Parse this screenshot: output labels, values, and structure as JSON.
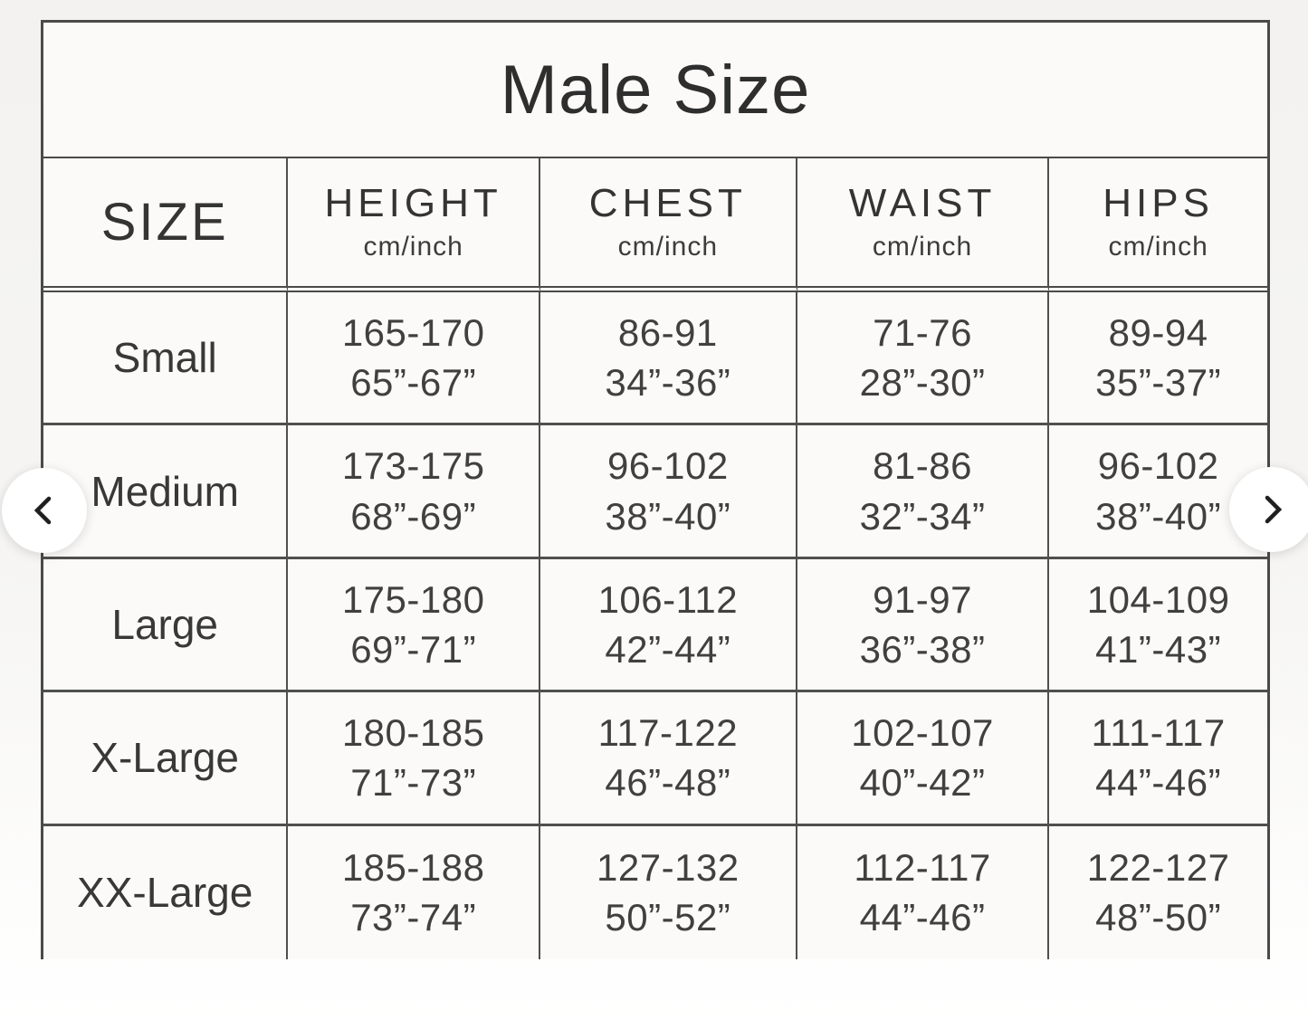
{
  "size_chart": {
    "title": "Male Size",
    "columns": [
      {
        "label": "SIZE",
        "sub": ""
      },
      {
        "label": "HEIGHT",
        "sub": "cm/inch"
      },
      {
        "label": "CHEST",
        "sub": "cm/inch"
      },
      {
        "label": "WAIST",
        "sub": "cm/inch"
      },
      {
        "label": "HIPS",
        "sub": "cm/inch"
      }
    ],
    "rows": [
      {
        "size": "Small",
        "height": {
          "cm": "165-170",
          "inch": "65”-67”"
        },
        "chest": {
          "cm": "86-91",
          "inch": "34”-36”"
        },
        "waist": {
          "cm": "71-76",
          "inch": "28”-30”"
        },
        "hips": {
          "cm": "89-94",
          "inch": "35”-37”"
        }
      },
      {
        "size": "Medium",
        "height": {
          "cm": "173-175",
          "inch": "68”-69”"
        },
        "chest": {
          "cm": "96-102",
          "inch": "38”-40”"
        },
        "waist": {
          "cm": "81-86",
          "inch": "32”-34”"
        },
        "hips": {
          "cm": "96-102",
          "inch": "38”-40”"
        }
      },
      {
        "size": "Large",
        "height": {
          "cm": "175-180",
          "inch": "69”-71”"
        },
        "chest": {
          "cm": "106-112",
          "inch": "42”-44”"
        },
        "waist": {
          "cm": "91-97",
          "inch": "36”-38”"
        },
        "hips": {
          "cm": "104-109",
          "inch": "41”-43”"
        }
      },
      {
        "size": "X-Large",
        "height": {
          "cm": "180-185",
          "inch": "71”-73”"
        },
        "chest": {
          "cm": "117-122",
          "inch": "46”-48”"
        },
        "waist": {
          "cm": "102-107",
          "inch": "40”-42”"
        },
        "hips": {
          "cm": "111-117",
          "inch": "44”-46”"
        }
      },
      {
        "size": "XX-Large",
        "height": {
          "cm": "185-188",
          "inch": "73”-74”"
        },
        "chest": {
          "cm": "127-132",
          "inch": "50”-52”"
        },
        "waist": {
          "cm": "112-117",
          "inch": "44”-46”"
        },
        "hips": {
          "cm": "122-127",
          "inch": "48”-50”"
        }
      }
    ]
  },
  "carousel": {
    "prev_icon": "chevron-left",
    "next_icon": "chevron-right"
  },
  "colors": {
    "table_border": "#4a4a4a",
    "text": "#3d3d3d",
    "page_background": "#f5f4f2",
    "nav_button_background": "#ffffff"
  }
}
